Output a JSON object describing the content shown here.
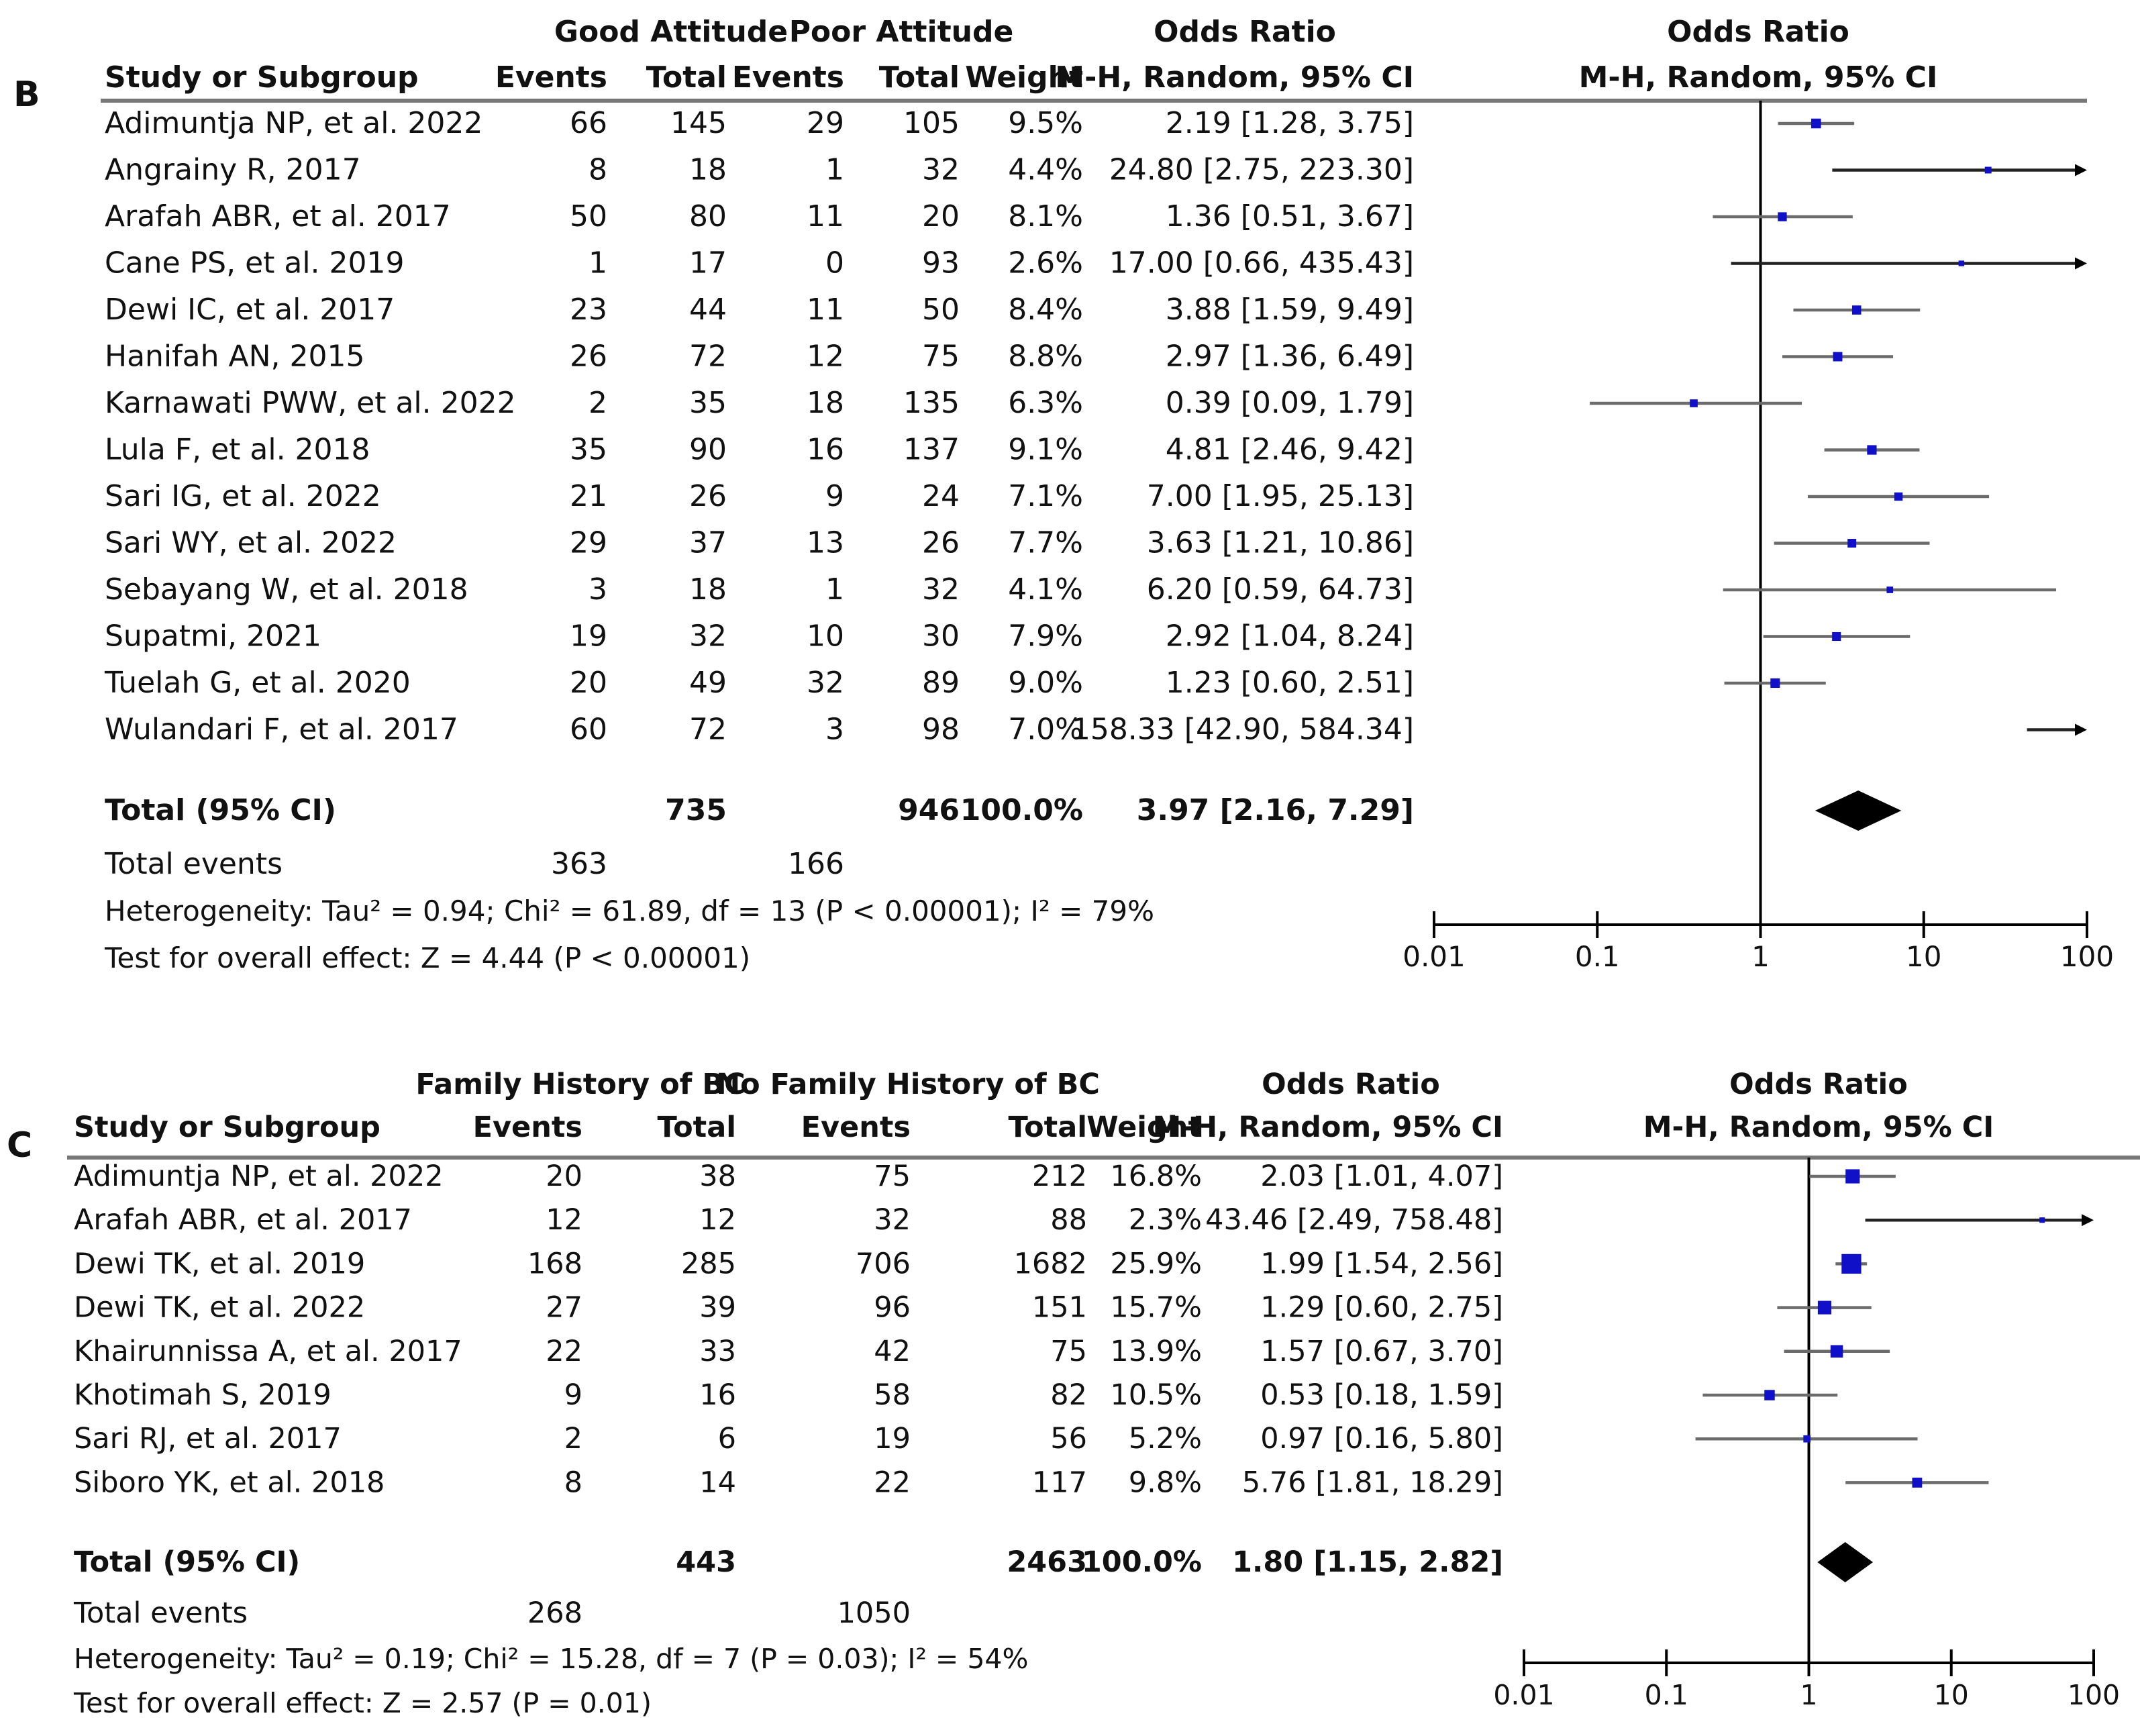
{
  "chart_data": [
    {
      "panel_label": "B",
      "type": "forest",
      "group_headers": [
        "Good Attitude",
        "Poor Attitude"
      ],
      "columns": {
        "study": "Study or Subgroup",
        "events_1": "Events",
        "total_1": "Total",
        "events_2": "Events",
        "total_2": "Total",
        "weight": "Weight",
        "or_title": "Odds Ratio",
        "or_method": "M-H, Random, 95% CI"
      },
      "plot_title": "Odds Ratio",
      "plot_method": "M-H, Random, 95% CI",
      "studies": [
        {
          "name": "Adimuntja NP, et al. 2022",
          "e1": "66",
          "t1": "145",
          "e2": "29",
          "t2": "105",
          "weight": "9.5%",
          "ci_text": "2.19 [1.28, 3.75]",
          "or": 2.19,
          "lo": 1.28,
          "hi": 3.75,
          "w": 9.5
        },
        {
          "name": "Angrainy R, 2017",
          "e1": "8",
          "t1": "18",
          "e2": "1",
          "t2": "32",
          "weight": "4.4%",
          "ci_text": "24.80 [2.75, 223.30]",
          "or": 24.8,
          "lo": 2.75,
          "hi": 223.3,
          "w": 4.4
        },
        {
          "name": "Arafah ABR, et al. 2017",
          "e1": "50",
          "t1": "80",
          "e2": "11",
          "t2": "20",
          "weight": "8.1%",
          "ci_text": "1.36 [0.51, 3.67]",
          "or": 1.36,
          "lo": 0.51,
          "hi": 3.67,
          "w": 8.1
        },
        {
          "name": "Cane PS, et al. 2019",
          "e1": "1",
          "t1": "17",
          "e2": "0",
          "t2": "93",
          "weight": "2.6%",
          "ci_text": "17.00 [0.66, 435.43]",
          "or": 17.0,
          "lo": 0.66,
          "hi": 435.43,
          "w": 2.6
        },
        {
          "name": "Dewi IC, et al. 2017",
          "e1": "23",
          "t1": "44",
          "e2": "11",
          "t2": "50",
          "weight": "8.4%",
          "ci_text": "3.88 [1.59, 9.49]",
          "or": 3.88,
          "lo": 1.59,
          "hi": 9.49,
          "w": 8.4
        },
        {
          "name": "Hanifah AN, 2015",
          "e1": "26",
          "t1": "72",
          "e2": "12",
          "t2": "75",
          "weight": "8.8%",
          "ci_text": "2.97 [1.36, 6.49]",
          "or": 2.97,
          "lo": 1.36,
          "hi": 6.49,
          "w": 8.8
        },
        {
          "name": "Karnawati PWW, et al. 2022",
          "e1": "2",
          "t1": "35",
          "e2": "18",
          "t2": "135",
          "weight": "6.3%",
          "ci_text": "0.39 [0.09, 1.79]",
          "or": 0.39,
          "lo": 0.09,
          "hi": 1.79,
          "w": 6.3
        },
        {
          "name": "Lula F, et al. 2018",
          "e1": "35",
          "t1": "90",
          "e2": "16",
          "t2": "137",
          "weight": "9.1%",
          "ci_text": "4.81 [2.46, 9.42]",
          "or": 4.81,
          "lo": 2.46,
          "hi": 9.42,
          "w": 9.1
        },
        {
          "name": "Sari IG, et al. 2022",
          "e1": "21",
          "t1": "26",
          "e2": "9",
          "t2": "24",
          "weight": "7.1%",
          "ci_text": "7.00 [1.95, 25.13]",
          "or": 7.0,
          "lo": 1.95,
          "hi": 25.13,
          "w": 7.1
        },
        {
          "name": "Sari WY, et al. 2022",
          "e1": "29",
          "t1": "37",
          "e2": "13",
          "t2": "26",
          "weight": "7.7%",
          "ci_text": "3.63 [1.21, 10.86]",
          "or": 3.63,
          "lo": 1.21,
          "hi": 10.86,
          "w": 7.7
        },
        {
          "name": "Sebayang W, et al. 2018",
          "e1": "3",
          "t1": "18",
          "e2": "1",
          "t2": "32",
          "weight": "4.1%",
          "ci_text": "6.20 [0.59, 64.73]",
          "or": 6.2,
          "lo": 0.59,
          "hi": 64.73,
          "w": 4.1
        },
        {
          "name": "Supatmi, 2021",
          "e1": "19",
          "t1": "32",
          "e2": "10",
          "t2": "30",
          "weight": "7.9%",
          "ci_text": "2.92 [1.04, 8.24]",
          "or": 2.92,
          "lo": 1.04,
          "hi": 8.24,
          "w": 7.9
        },
        {
          "name": "Tuelah G, et al. 2020",
          "e1": "20",
          "t1": "49",
          "e2": "32",
          "t2": "89",
          "weight": "9.0%",
          "ci_text": "1.23 [0.60, 2.51]",
          "or": 1.23,
          "lo": 0.6,
          "hi": 2.51,
          "w": 9.0
        },
        {
          "name": "Wulandari F, et al. 2017",
          "e1": "60",
          "t1": "72",
          "e2": "3",
          "t2": "98",
          "weight": "7.0%",
          "ci_text": "158.33 [42.90, 584.34]",
          "or": 158.33,
          "lo": 42.9,
          "hi": 584.34,
          "w": 7.0
        }
      ],
      "total": {
        "label": "Total (95% CI)",
        "t1": "735",
        "t2": "946",
        "weight": "100.0%",
        "ci_text": "3.97 [2.16, 7.29]",
        "or": 3.97,
        "lo": 2.16,
        "hi": 7.29
      },
      "events": {
        "label": "Total events",
        "e1": "363",
        "e2": "166"
      },
      "heterogeneity": "Heterogeneity: Tau² = 0.94; Chi² = 61.89, df = 13 (P < 0.00001); I² = 79%",
      "overall_effect": "Test for overall effect: Z = 4.44 (P < 0.00001)",
      "axis": {
        "scale": "log",
        "ticks": [
          0.01,
          0.1,
          1,
          10,
          100
        ],
        "tick_labels": [
          "0.01",
          "0.1",
          "1",
          "10",
          "100"
        ],
        "xlim": [
          0.01,
          100
        ]
      }
    },
    {
      "panel_label": "C",
      "type": "forest",
      "group_headers": [
        "Family History of BC",
        "No Family History of BC"
      ],
      "columns": {
        "study": "Study or Subgroup",
        "events_1": "Events",
        "total_1": "Total",
        "events_2": "Events",
        "total_2": "Total",
        "weight": "Weight",
        "or_title": "Odds Ratio",
        "or_method": "M-H, Random, 95% CI"
      },
      "plot_title": "Odds Ratio",
      "plot_method": "M-H, Random, 95% CI",
      "studies": [
        {
          "name": "Adimuntja NP, et al. 2022",
          "e1": "20",
          "t1": "38",
          "e2": "75",
          "t2": "212",
          "weight": "16.8%",
          "ci_text": "2.03 [1.01, 4.07]",
          "or": 2.03,
          "lo": 1.01,
          "hi": 4.07,
          "w": 16.8
        },
        {
          "name": "Arafah ABR, et al. 2017",
          "e1": "12",
          "t1": "12",
          "e2": "32",
          "t2": "88",
          "weight": "2.3%",
          "ci_text": "43.46 [2.49, 758.48]",
          "or": 43.46,
          "lo": 2.49,
          "hi": 758.48,
          "w": 2.3
        },
        {
          "name": "Dewi TK, et al. 2019",
          "e1": "168",
          "t1": "285",
          "e2": "706",
          "t2": "1682",
          "weight": "25.9%",
          "ci_text": "1.99 [1.54, 2.56]",
          "or": 1.99,
          "lo": 1.54,
          "hi": 2.56,
          "w": 25.9
        },
        {
          "name": "Dewi TK, et al. 2022",
          "e1": "27",
          "t1": "39",
          "e2": "96",
          "t2": "151",
          "weight": "15.7%",
          "ci_text": "1.29 [0.60, 2.75]",
          "or": 1.29,
          "lo": 0.6,
          "hi": 2.75,
          "w": 15.7
        },
        {
          "name": "Khairunnissa A, et al. 2017",
          "e1": "22",
          "t1": "33",
          "e2": "42",
          "t2": "75",
          "weight": "13.9%",
          "ci_text": "1.57 [0.67, 3.70]",
          "or": 1.57,
          "lo": 0.67,
          "hi": 3.7,
          "w": 13.9
        },
        {
          "name": "Khotimah S, 2019",
          "e1": "9",
          "t1": "16",
          "e2": "58",
          "t2": "82",
          "weight": "10.5%",
          "ci_text": "0.53 [0.18, 1.59]",
          "or": 0.53,
          "lo": 0.18,
          "hi": 1.59,
          "w": 10.5
        },
        {
          "name": "Sari RJ, et al. 2017",
          "e1": "2",
          "t1": "6",
          "e2": "19",
          "t2": "56",
          "weight": "5.2%",
          "ci_text": "0.97 [0.16, 5.80]",
          "or": 0.97,
          "lo": 0.16,
          "hi": 5.8,
          "w": 5.2
        },
        {
          "name": "Siboro YK, et al. 2018",
          "e1": "8",
          "t1": "14",
          "e2": "22",
          "t2": "117",
          "weight": "9.8%",
          "ci_text": "5.76 [1.81, 18.29]",
          "or": 5.76,
          "lo": 1.81,
          "hi": 18.29,
          "w": 9.8
        }
      ],
      "total": {
        "label": "Total (95% CI)",
        "t1": "443",
        "t2": "2463",
        "weight": "100.0%",
        "ci_text": "1.80 [1.15, 2.82]",
        "or": 1.8,
        "lo": 1.15,
        "hi": 2.82
      },
      "events": {
        "label": "Total events",
        "e1": "268",
        "e2": "1050"
      },
      "heterogeneity": "Heterogeneity: Tau² = 0.19; Chi² = 15.28, df = 7 (P = 0.03); I² = 54%",
      "overall_effect": "Test for overall effect: Z = 2.57 (P = 0.01)",
      "axis": {
        "scale": "log",
        "ticks": [
          0.01,
          0.1,
          1,
          10,
          100
        ],
        "tick_labels": [
          "0.01",
          "0.1",
          "1",
          "10",
          "100"
        ],
        "xlim": [
          0.01,
          100
        ]
      }
    }
  ],
  "colors": {
    "marker": "#1010c8",
    "line": "#6b6b6b",
    "text": "#111111",
    "rule": "#777777",
    "diamond": "#000000"
  }
}
